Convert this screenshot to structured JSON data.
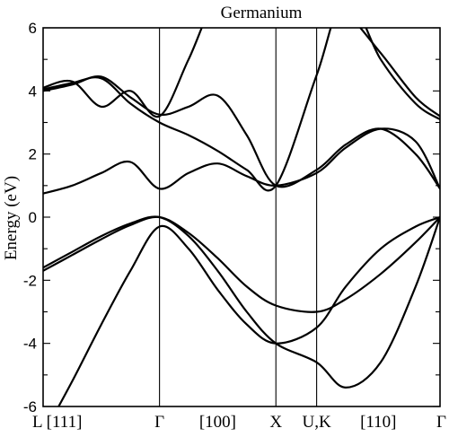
{
  "chart_data": {
    "type": "line",
    "title": "Germanium",
    "ylabel": "Energy (eV)",
    "xlabel": "",
    "ylim": [
      -6,
      6
    ],
    "yticks": [
      6,
      4,
      2,
      0,
      -2,
      -4,
      -6
    ],
    "ytick_labels": [
      "6",
      "4",
      "2",
      "0",
      "-2",
      "-4",
      "-6"
    ],
    "xlim": [
      0,
      3.41
    ],
    "xticks": [
      0,
      1.0,
      2.0,
      2.35,
      3.41
    ],
    "xtick_labels": [
      "L [111]",
      "Γ",
      "X",
      "U,K",
      "Γ"
    ],
    "xmid_labels": [
      {
        "text": "[100]",
        "x": 1.5
      },
      {
        "text": "[110]",
        "x": 2.88
      }
    ],
    "symmetry_points": [
      1.0,
      2.0,
      2.35
    ],
    "grid": false,
    "series": [
      {
        "x": [
          0,
          0.25,
          0.5,
          0.75,
          1.0,
          1.25,
          1.5,
          1.75,
          2.0,
          2.35,
          2.6,
          2.9,
          3.2,
          3.41
        ],
        "values": [
          -6.9,
          -5.2,
          -3.4,
          -1.7,
          -0.3,
          -1.0,
          -2.3,
          -3.4,
          -4.0,
          -3.5,
          -2.2,
          -1.0,
          -0.3,
          0.0
        ]
      },
      {
        "x": [
          0,
          0.25,
          0.5,
          0.75,
          1.0,
          1.25,
          1.5,
          1.75,
          2.0,
          2.35,
          2.6,
          2.9,
          3.2,
          3.41
        ],
        "values": [
          -1.6,
          -1.1,
          -0.6,
          -0.2,
          0.0,
          -0.6,
          -1.7,
          -3.0,
          -4.0,
          -4.6,
          -5.4,
          -4.6,
          -2.2,
          0.0
        ]
      },
      {
        "x": [
          0,
          0.25,
          0.5,
          0.75,
          1.0,
          1.25,
          1.5,
          1.75,
          2.0,
          2.35,
          2.6,
          2.9,
          3.2,
          3.41
        ],
        "values": [
          -1.7,
          -1.2,
          -0.7,
          -0.25,
          0.0,
          -0.5,
          -1.3,
          -2.2,
          -2.8,
          -3.0,
          -2.6,
          -1.8,
          -0.8,
          0.0
        ]
      },
      {
        "x": [
          0,
          0.25,
          0.5,
          0.75,
          1.0,
          1.25,
          1.5,
          1.75,
          2.0,
          2.35,
          2.6,
          2.9,
          3.2,
          3.41
        ],
        "values": [
          0.75,
          1.0,
          1.4,
          1.75,
          0.9,
          1.4,
          1.7,
          1.3,
          1.0,
          1.4,
          2.2,
          2.8,
          2.4,
          0.9
        ]
      },
      {
        "x": [
          0,
          0.25,
          0.5,
          0.75,
          1.0,
          1.25,
          1.5,
          1.75,
          2.0,
          2.35,
          2.6,
          2.9,
          3.2,
          3.41
        ],
        "values": [
          4.0,
          4.2,
          4.45,
          3.8,
          3.25,
          3.5,
          3.85,
          2.6,
          1.0,
          1.5,
          2.3,
          2.8,
          2.0,
          0.9
        ]
      },
      {
        "x": [
          0,
          0.25,
          0.5,
          0.75,
          1.0,
          1.25,
          1.5,
          1.75,
          2.0,
          2.35,
          2.6,
          2.9,
          3.2,
          3.41
        ],
        "values": [
          4.05,
          4.25,
          4.4,
          3.6,
          3.0,
          2.6,
          2.1,
          1.5,
          1.0,
          4.5,
          7.0,
          5.0,
          3.6,
          3.1
        ]
      },
      {
        "x": [
          0,
          0.25,
          0.5,
          0.75,
          1.0,
          1.25,
          1.5,
          1.75,
          2.0,
          2.35,
          2.6,
          2.9,
          3.2,
          3.41
        ],
        "values": [
          4.1,
          4.3,
          3.5,
          4.0,
          3.2,
          5.0,
          7.0,
          7.0,
          7.0,
          7.0,
          6.5,
          5.2,
          3.8,
          3.2
        ]
      }
    ]
  }
}
